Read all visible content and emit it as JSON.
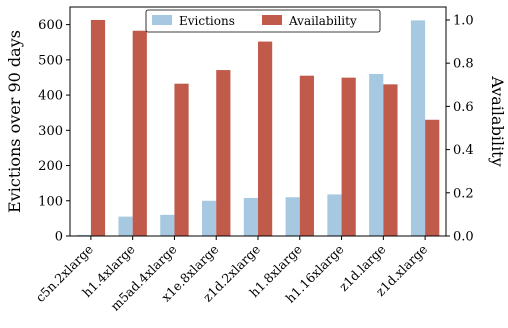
{
  "chart_data": {
    "type": "bar",
    "categories": [
      "c5n.2xlarge",
      "h1.4xlarge",
      "m5ad.4xlarge",
      "x1e.8xlarge",
      "z1d.2xlarge",
      "h1.8xlarge",
      "h1.16xlarge",
      "z1d.large",
      "z1d.xlarge"
    ],
    "series": [
      {
        "name": "Evictions",
        "axis": "left",
        "color": "#a6c8e0",
        "values": [
          3,
          55,
          60,
          100,
          108,
          110,
          118,
          460,
          612
        ]
      },
      {
        "name": "Availability",
        "axis": "right",
        "color": "#c05a4b",
        "values": [
          1.0,
          0.95,
          0.705,
          0.768,
          0.9,
          0.742,
          0.733,
          0.702,
          0.538
        ]
      }
    ],
    "ylabel": "Evictions over 90 days",
    "y2label": "Availability",
    "ylim": [
      0,
      650
    ],
    "y2lim": [
      0,
      1.06
    ],
    "yticks": [
      "0",
      "100",
      "200",
      "300",
      "400",
      "500",
      "600"
    ],
    "y2ticks": [
      "0.0",
      "0.2",
      "0.4",
      "0.6",
      "0.8",
      "1.0"
    ],
    "grid": false,
    "legend": {
      "placement": "top-center",
      "columns": 2
    }
  }
}
